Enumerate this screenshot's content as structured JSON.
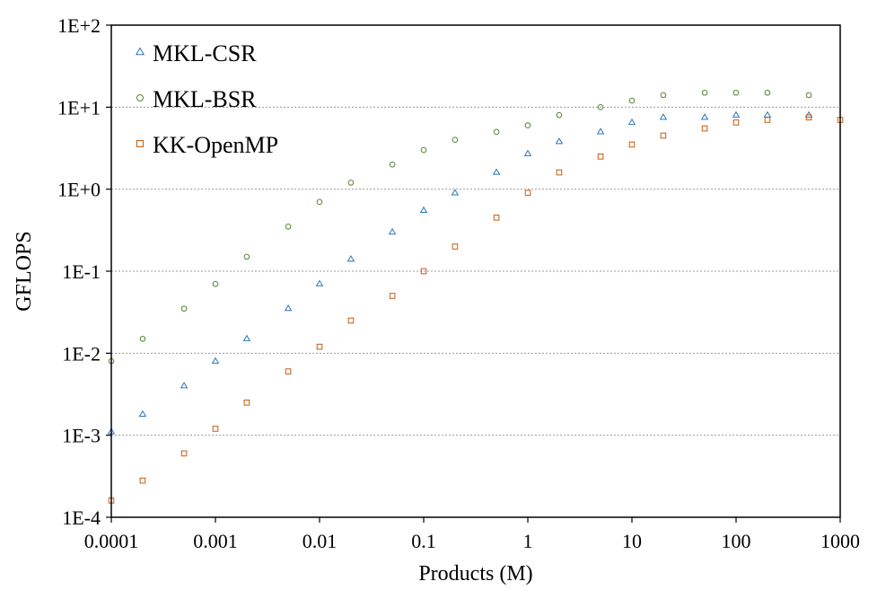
{
  "chart_data": {
    "type": "scatter",
    "title": "",
    "xlabel": "Products (M)",
    "ylabel": "GFLOPS",
    "xscale": "log",
    "yscale": "log",
    "xlim": [
      0.0001,
      1000
    ],
    "ylim": [
      0.0001,
      100
    ],
    "x_ticks": [
      "0.0001",
      "0.001",
      "0.01",
      "0.1",
      "1",
      "10",
      "100",
      "1000"
    ],
    "y_ticks": [
      "1E-4",
      "1E-3",
      "1E-2",
      "1E-1",
      "1E+0",
      "1E+1",
      "1E+2"
    ],
    "grid": "horizontal dotted",
    "legend_position": "top-left",
    "series": [
      {
        "name": "MKL-CSR",
        "marker": "triangle",
        "color": "#2E75B6",
        "x": [
          0.0001,
          0.0002,
          0.0005,
          0.001,
          0.002,
          0.005,
          0.01,
          0.02,
          0.05,
          0.1,
          0.2,
          0.5,
          1,
          2,
          5,
          10,
          20,
          50,
          100,
          200,
          500
        ],
        "y": [
          0.0011,
          0.0018,
          0.004,
          0.008,
          0.015,
          0.035,
          0.07,
          0.14,
          0.3,
          0.55,
          0.9,
          1.6,
          2.7,
          3.8,
          5,
          6.5,
          7.5,
          7.5,
          8,
          8,
          8
        ]
      },
      {
        "name": "MKL-BSR",
        "marker": "circle",
        "color": "#548235",
        "x": [
          0.0001,
          0.0002,
          0.0005,
          0.001,
          0.002,
          0.005,
          0.01,
          0.02,
          0.05,
          0.1,
          0.2,
          0.5,
          1,
          2,
          5,
          10,
          20,
          50,
          100,
          200,
          500
        ],
        "y": [
          0.008,
          0.015,
          0.035,
          0.07,
          0.15,
          0.35,
          0.7,
          1.2,
          2,
          3,
          4,
          5,
          6,
          8,
          10,
          12,
          14,
          15,
          15,
          15,
          14
        ]
      },
      {
        "name": "KK-OpenMP",
        "marker": "square",
        "color": "#C55A11",
        "x": [
          0.0001,
          0.0002,
          0.0005,
          0.001,
          0.002,
          0.005,
          0.01,
          0.02,
          0.05,
          0.1,
          0.2,
          0.5,
          1,
          2,
          5,
          10,
          20,
          50,
          100,
          200,
          500,
          1000
        ],
        "y": [
          0.00016,
          0.00028,
          0.0006,
          0.0012,
          0.0025,
          0.006,
          0.012,
          0.025,
          0.05,
          0.1,
          0.2,
          0.45,
          0.9,
          1.6,
          2.5,
          3.5,
          4.5,
          5.5,
          6.5,
          7,
          7.5,
          7
        ]
      }
    ]
  }
}
